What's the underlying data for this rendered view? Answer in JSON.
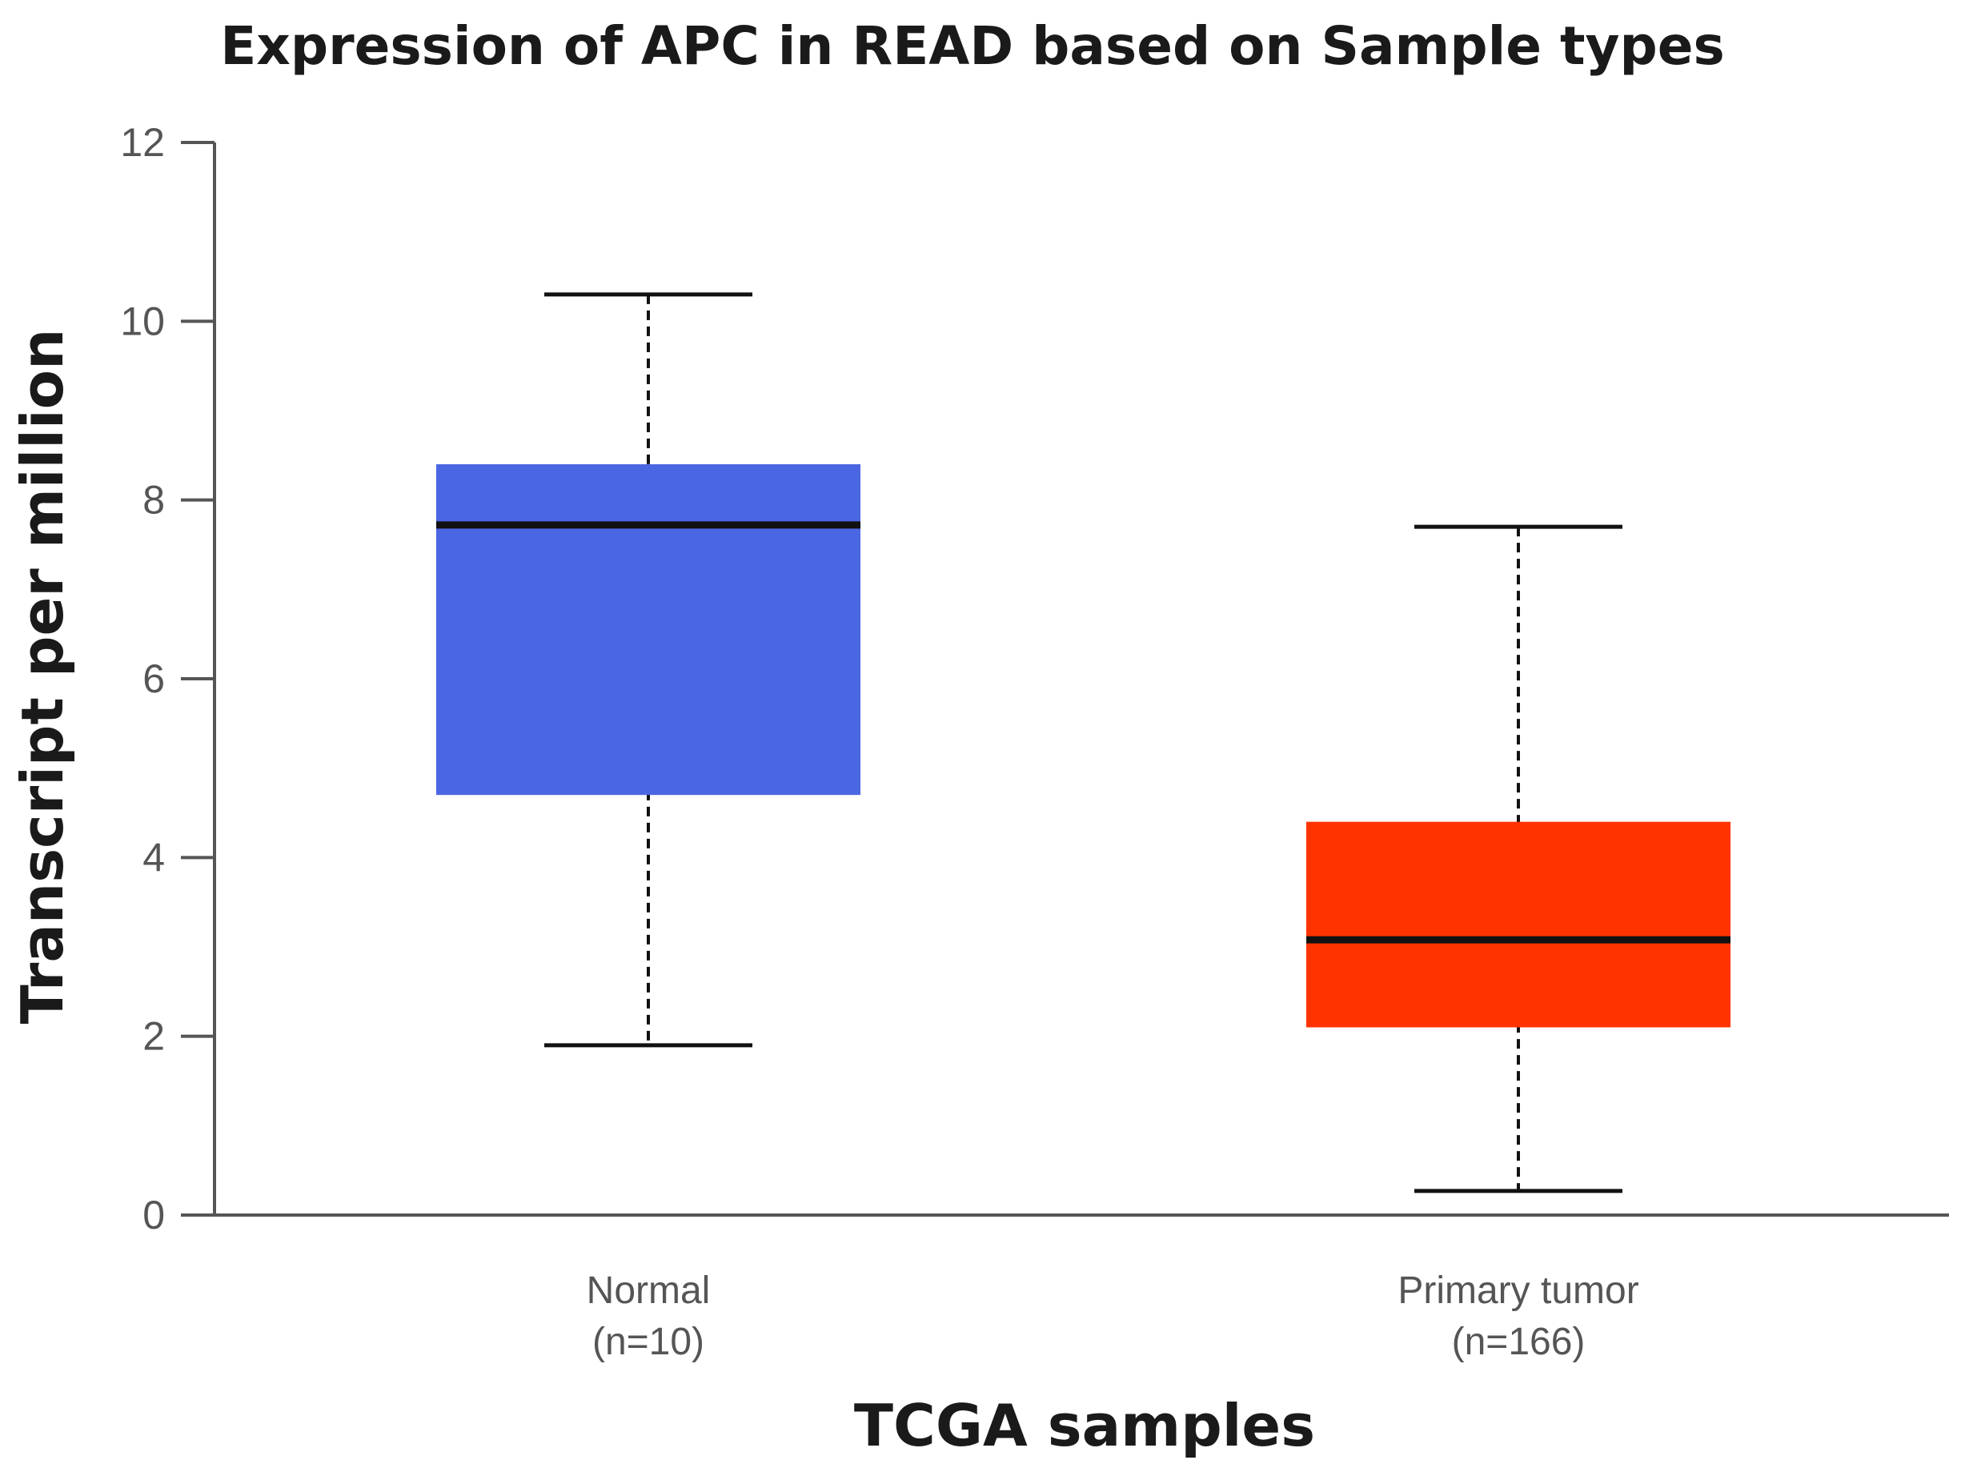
{
  "chart_data": {
    "type": "boxplot",
    "title": "Expression of APC in READ based on Sample types",
    "xlabel": "TCGA samples",
    "ylabel": "Transcript per million",
    "ylim": [
      0,
      12
    ],
    "yticks": [
      0,
      2,
      4,
      6,
      8,
      10,
      12
    ],
    "grid": false,
    "categories": [
      {
        "name": "Normal",
        "count_label": "(n=10)",
        "color": "#4B66E3",
        "min": 1.9,
        "q1": 4.7,
        "median": 7.72,
        "q3": 8.4,
        "max": 10.3
      },
      {
        "name": "Primary tumor",
        "count_label": "(n=166)",
        "color": "#FF3300",
        "min": 0.27,
        "q1": 2.1,
        "median": 3.08,
        "q3": 4.4,
        "max": 7.7
      }
    ]
  }
}
